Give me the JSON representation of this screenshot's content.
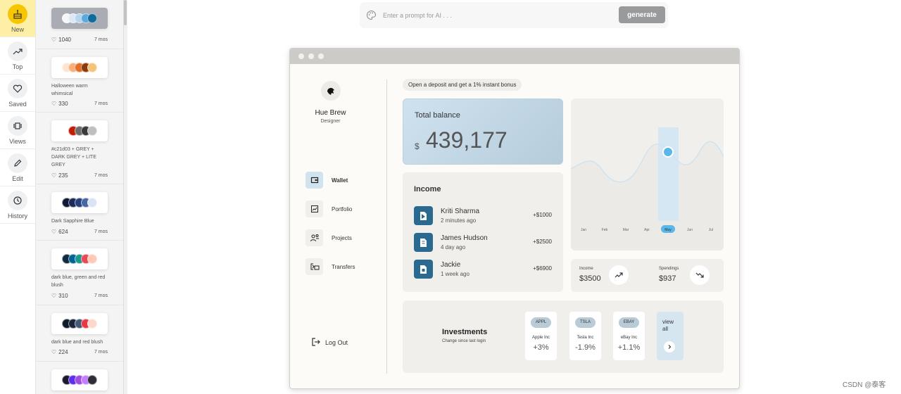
{
  "rail": {
    "items": [
      {
        "label": "New",
        "icon": "cake-icon"
      },
      {
        "label": "Top",
        "icon": "trending-up-icon"
      },
      {
        "label": "Saved",
        "icon": "heart-icon"
      },
      {
        "label": "Views",
        "icon": "carousel-icon"
      },
      {
        "label": "Edit",
        "icon": "pencil-icon"
      },
      {
        "label": "History",
        "icon": "history-icon"
      }
    ]
  },
  "feed": {
    "cards": [
      {
        "name": "",
        "likes": "1040",
        "age": "7 mos",
        "colors": [
          "#f4f6f8",
          "#dce9f4",
          "#b5d5ec",
          "#5da9dd",
          "#116a9c"
        ]
      },
      {
        "name": "Halloween warm whimsical",
        "likes": "330",
        "age": "7 mos",
        "colors": [
          "#fde6d0",
          "#f8b07a",
          "#e06f2a",
          "#8c3b10",
          "#f6c27b"
        ]
      },
      {
        "name": "#c21d03 + GREY + DARK GREY + LITE GREY",
        "likes": "235",
        "age": "7 mos",
        "colors": [
          "#ffffff",
          "#c21d03",
          "#6b6b6b",
          "#3a3a3a",
          "#bfbfbf"
        ]
      },
      {
        "name": "Dark Sapphire Blue",
        "likes": "624",
        "age": "7 mos",
        "colors": [
          "#0f1a33",
          "#1b2d57",
          "#27407a",
          "#4867a5",
          "#d8e3f5"
        ]
      },
      {
        "name": "dark blue, green and red blush",
        "likes": "310",
        "age": "7 mos",
        "colors": [
          "#13293d",
          "#006494",
          "#1b998b",
          "#e84855",
          "#ffc9b5"
        ]
      },
      {
        "name": "dark blue and red blush",
        "likes": "224",
        "age": "7 mos",
        "colors": [
          "#0d1b2a",
          "#1b263b",
          "#415a77",
          "#e63946",
          "#ffd6cc"
        ]
      },
      {
        "name": "",
        "likes": "",
        "age": "",
        "colors": [
          "#1a1a2e",
          "#5f2eea",
          "#9d4edd",
          "#c77dff",
          "#2d2d3a"
        ]
      }
    ]
  },
  "prompt": {
    "placeholder": "Enter a prompt for AI . . .",
    "button": "generate"
  },
  "app": {
    "user": {
      "name": "Hue Brew",
      "role": "Designer"
    },
    "nav": [
      {
        "label": "Wallet",
        "icon": "wallet-icon",
        "active": true
      },
      {
        "label": "Portfolio",
        "icon": "chart-icon",
        "active": false
      },
      {
        "label": "Projects",
        "icon": "people-icon",
        "active": false
      },
      {
        "label": "Transfers",
        "icon": "transfer-icon",
        "active": false
      }
    ],
    "logout": "Log Out",
    "banner": "Open a deposit and get a 1% instant bonus",
    "balance": {
      "title": "Total balance",
      "currency": "$",
      "amount": "439,177"
    },
    "income": {
      "title": "Income",
      "rows": [
        {
          "name": "Kriti Sharma",
          "time": "2 minutes ago",
          "amount": "+$1000"
        },
        {
          "name": "James Hudson",
          "time": "4 day ago",
          "amount": "+$2500"
        },
        {
          "name": "Jackie",
          "time": "1 week ago",
          "amount": "+$6900"
        }
      ]
    },
    "chart": {
      "months": [
        "Jan",
        "Feb",
        "Mar",
        "Apr",
        "May",
        "Jun",
        "Jul"
      ],
      "highlighted": "May"
    },
    "stats": {
      "income": {
        "label": "Income",
        "value": "$3500"
      },
      "spendings": {
        "label": "Spendings",
        "value": "$937"
      }
    },
    "investments": {
      "title": "Investments",
      "subtitle": "Change since last login",
      "stocks": [
        {
          "ticker": "APPL",
          "name": "Apple Inc",
          "change": "+3%"
        },
        {
          "ticker": "TSLA",
          "name": "Tesla Inc",
          "change": "-1.9%"
        },
        {
          "ticker": "EBAY",
          "name": "eBay Inc",
          "change": "+1.1%"
        }
      ],
      "view_all": "view all"
    }
  },
  "watermark": "CSDN @泰客"
}
